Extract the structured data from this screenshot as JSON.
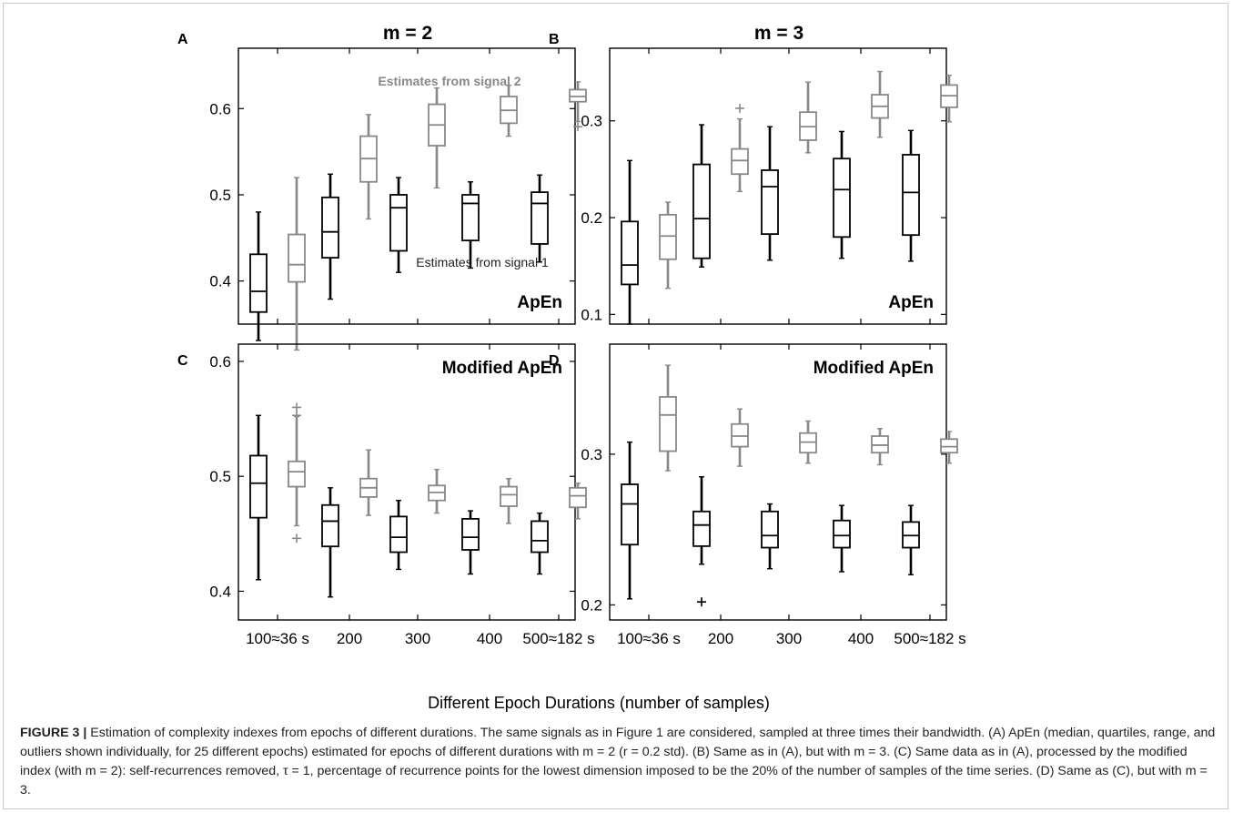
{
  "column_titles": [
    "m = 2",
    "m = 3"
  ],
  "x_axis_label": "Different Epoch Durations (number of samples)",
  "x_tick_labels": [
    "100≈36 s",
    "200",
    "300",
    "400",
    "500≈182 s"
  ],
  "colors": {
    "signal1": "#000000",
    "signal2": "#888888"
  },
  "caption": {
    "label": "FIGURE 3 |",
    "text": "Estimation of complexity indexes from epochs of different durations. The same signals as in Figure 1 are considered, sampled at three times their bandwidth. (A) ApEn (median, quartiles, range, and outliers shown individually, for 25 different epochs) estimated for epochs of different durations with m = 2 (r = 0.2 std). (B) Same as in (A), but with m = 3. (C) Same data as in (A), processed by the modified index (with m = 2): self-recurrences removed, τ = 1, percentage of recurrence points for the lowest dimension imposed to be the 20% of the number of samples of the time series. (D) Same as (C), but with m = 3."
  },
  "chart_data": [
    {
      "type": "box",
      "panel": "A",
      "title": "m = 2",
      "label": "ApEn",
      "annotations": [
        "Estimates from signal 2",
        "Estimates from signal 1"
      ],
      "categories": [
        "100≈36 s",
        "200",
        "300",
        "400",
        "500≈182 s"
      ],
      "ylim": [
        0.35,
        0.67
      ],
      "yticks": [
        0.4,
        0.5,
        0.6
      ],
      "series": [
        {
          "role": "signal1",
          "boxes": [
            {
              "min": 0.331,
              "q1": 0.364,
              "median": 0.388,
              "q3": 0.431,
              "max": 0.48,
              "outliers": []
            },
            {
              "min": 0.379,
              "q1": 0.427,
              "median": 0.457,
              "q3": 0.497,
              "max": 0.524,
              "outliers": []
            },
            {
              "min": 0.41,
              "q1": 0.435,
              "median": 0.485,
              "q3": 0.5,
              "max": 0.52,
              "outliers": []
            },
            {
              "min": 0.415,
              "q1": 0.447,
              "median": 0.49,
              "q3": 0.5,
              "max": 0.515,
              "outliers": []
            },
            {
              "min": 0.422,
              "q1": 0.443,
              "median": 0.49,
              "q3": 0.503,
              "max": 0.523,
              "outliers": []
            }
          ]
        },
        {
          "role": "signal2",
          "boxes": [
            {
              "min": 0.32,
              "q1": 0.399,
              "median": 0.419,
              "q3": 0.454,
              "max": 0.52,
              "outliers": []
            },
            {
              "min": 0.472,
              "q1": 0.515,
              "median": 0.542,
              "q3": 0.568,
              "max": 0.593,
              "outliers": []
            },
            {
              "min": 0.508,
              "q1": 0.557,
              "median": 0.581,
              "q3": 0.605,
              "max": 0.624,
              "outliers": []
            },
            {
              "min": 0.568,
              "q1": 0.583,
              "median": 0.598,
              "q3": 0.614,
              "max": 0.627,
              "outliers": []
            },
            {
              "min": 0.585,
              "q1": 0.608,
              "median": 0.614,
              "q3": 0.622,
              "max": 0.631,
              "outliers": [
                0.579
              ]
            }
          ]
        }
      ]
    },
    {
      "type": "box",
      "panel": "B",
      "title": "m = 3",
      "label": "ApEn",
      "annotations": [],
      "categories": [
        "100≈36 s",
        "200",
        "300",
        "400",
        "500≈182 s"
      ],
      "ylim": [
        0.09,
        0.375
      ],
      "yticks": [
        0.1,
        0.2,
        0.3
      ],
      "series": [
        {
          "role": "signal1",
          "boxes": [
            {
              "min": 0.09,
              "q1": 0.131,
              "median": 0.151,
              "q3": 0.196,
              "max": 0.259,
              "outliers": []
            },
            {
              "min": 0.149,
              "q1": 0.158,
              "median": 0.199,
              "q3": 0.255,
              "max": 0.296,
              "outliers": []
            },
            {
              "min": 0.156,
              "q1": 0.183,
              "median": 0.232,
              "q3": 0.249,
              "max": 0.294,
              "outliers": []
            },
            {
              "min": 0.158,
              "q1": 0.18,
              "median": 0.229,
              "q3": 0.261,
              "max": 0.289,
              "outliers": []
            },
            {
              "min": 0.155,
              "q1": 0.182,
              "median": 0.226,
              "q3": 0.265,
              "max": 0.29,
              "outliers": []
            }
          ]
        },
        {
          "role": "signal2",
          "boxes": [
            {
              "min": 0.127,
              "q1": 0.157,
              "median": 0.181,
              "q3": 0.203,
              "max": 0.216,
              "outliers": []
            },
            {
              "min": 0.227,
              "q1": 0.245,
              "median": 0.259,
              "q3": 0.271,
              "max": 0.302,
              "outliers": [
                0.313
              ]
            },
            {
              "min": 0.267,
              "q1": 0.28,
              "median": 0.294,
              "q3": 0.309,
              "max": 0.34,
              "outliers": []
            },
            {
              "min": 0.283,
              "q1": 0.303,
              "median": 0.315,
              "q3": 0.327,
              "max": 0.351,
              "outliers": []
            },
            {
              "min": 0.299,
              "q1": 0.314,
              "median": 0.326,
              "q3": 0.337,
              "max": 0.347,
              "outliers": []
            }
          ]
        }
      ]
    },
    {
      "type": "box",
      "panel": "C",
      "title": "",
      "label": "Modified ApEn",
      "annotations": [],
      "categories": [
        "100≈36 s",
        "200",
        "300",
        "400",
        "500≈182 s"
      ],
      "ylim": [
        0.375,
        0.615
      ],
      "yticks": [
        0.4,
        0.5,
        0.6
      ],
      "series": [
        {
          "role": "signal1",
          "boxes": [
            {
              "min": 0.41,
              "q1": 0.464,
              "median": 0.494,
              "q3": 0.518,
              "max": 0.553,
              "outliers": []
            },
            {
              "min": 0.395,
              "q1": 0.439,
              "median": 0.461,
              "q3": 0.475,
              "max": 0.49,
              "outliers": []
            },
            {
              "min": 0.419,
              "q1": 0.434,
              "median": 0.447,
              "q3": 0.465,
              "max": 0.479,
              "outliers": []
            },
            {
              "min": 0.415,
              "q1": 0.436,
              "median": 0.447,
              "q3": 0.463,
              "max": 0.47,
              "outliers": []
            },
            {
              "min": 0.415,
              "q1": 0.434,
              "median": 0.444,
              "q3": 0.461,
              "max": 0.468,
              "outliers": []
            }
          ]
        },
        {
          "role": "signal2",
          "boxes": [
            {
              "min": 0.457,
              "q1": 0.491,
              "median": 0.504,
              "q3": 0.513,
              "max": 0.552,
              "outliers": [
                0.446,
                0.553,
                0.56
              ]
            },
            {
              "min": 0.466,
              "q1": 0.482,
              "median": 0.49,
              "q3": 0.498,
              "max": 0.523,
              "outliers": []
            },
            {
              "min": 0.468,
              "q1": 0.479,
              "median": 0.486,
              "q3": 0.492,
              "max": 0.506,
              "outliers": []
            },
            {
              "min": 0.459,
              "q1": 0.474,
              "median": 0.484,
              "q3": 0.491,
              "max": 0.498,
              "outliers": []
            },
            {
              "min": 0.463,
              "q1": 0.473,
              "median": 0.483,
              "q3": 0.49,
              "max": 0.494,
              "outliers": []
            }
          ]
        }
      ]
    },
    {
      "type": "box",
      "panel": "D",
      "title": "",
      "label": "Modified ApEn",
      "annotations": [],
      "categories": [
        "100≈36 s",
        "200",
        "300",
        "400",
        "500≈182 s"
      ],
      "ylim": [
        0.19,
        0.373
      ],
      "yticks": [
        0.2,
        0.3
      ],
      "series": [
        {
          "role": "signal1",
          "boxes": [
            {
              "min": 0.204,
              "q1": 0.24,
              "median": 0.267,
              "q3": 0.28,
              "max": 0.308,
              "outliers": []
            },
            {
              "min": 0.227,
              "q1": 0.239,
              "median": 0.253,
              "q3": 0.262,
              "max": 0.285,
              "outliers": [
                0.202
              ]
            },
            {
              "min": 0.224,
              "q1": 0.238,
              "median": 0.246,
              "q3": 0.262,
              "max": 0.267,
              "outliers": []
            },
            {
              "min": 0.222,
              "q1": 0.238,
              "median": 0.246,
              "q3": 0.256,
              "max": 0.266,
              "outliers": []
            },
            {
              "min": 0.22,
              "q1": 0.238,
              "median": 0.246,
              "q3": 0.255,
              "max": 0.266,
              "outliers": []
            }
          ]
        },
        {
          "role": "signal2",
          "boxes": [
            {
              "min": 0.289,
              "q1": 0.302,
              "median": 0.326,
              "q3": 0.338,
              "max": 0.359,
              "outliers": []
            },
            {
              "min": 0.292,
              "q1": 0.305,
              "median": 0.312,
              "q3": 0.32,
              "max": 0.33,
              "outliers": []
            },
            {
              "min": 0.294,
              "q1": 0.301,
              "median": 0.308,
              "q3": 0.314,
              "max": 0.322,
              "outliers": []
            },
            {
              "min": 0.293,
              "q1": 0.301,
              "median": 0.306,
              "q3": 0.312,
              "max": 0.317,
              "outliers": []
            },
            {
              "min": 0.294,
              "q1": 0.301,
              "median": 0.305,
              "q3": 0.31,
              "max": 0.315,
              "outliers": []
            }
          ]
        }
      ]
    }
  ]
}
